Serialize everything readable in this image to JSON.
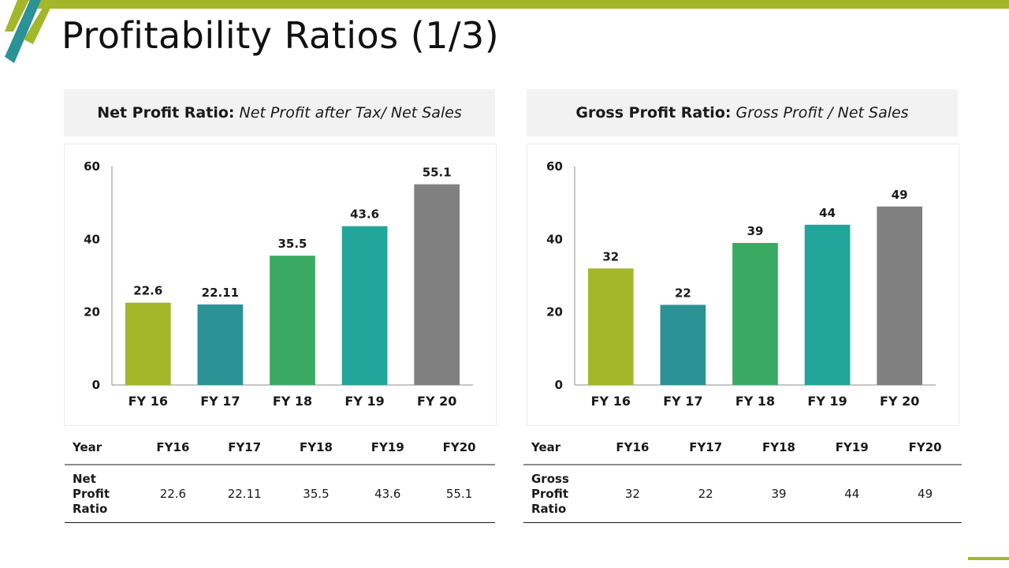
{
  "title": "Profitability Ratios (1/3)",
  "colors": {
    "accent_green": "#a3b72b",
    "teal": "#2b9296",
    "green": "#3aaa62",
    "aqua": "#22a59a",
    "gray": "#808080"
  },
  "panels": [
    {
      "header_bold": "Net Profit Ratio:",
      "header_italic": " Net Profit after Tax/ Net Sales",
      "table": {
        "year_label": "Year",
        "years": [
          "FY16",
          "FY17",
          "FY18",
          "FY19",
          "FY20"
        ],
        "row_label": "Net Profit Ratio",
        "values": [
          "22.6",
          "22.11",
          "35.5",
          "43.6",
          "55.1"
        ]
      }
    },
    {
      "header_bold": "Gross Profit Ratio:",
      "header_italic": " Gross Profit / Net Sales",
      "table": {
        "year_label": "Year",
        "years": [
          "FY16",
          "FY17",
          "FY18",
          "FY19",
          "FY20"
        ],
        "row_label": "Gross Profit Ratio",
        "values": [
          "32",
          "22",
          "39",
          "44",
          "49"
        ]
      }
    }
  ],
  "chart_data": [
    {
      "type": "bar",
      "title": "Net Profit Ratio",
      "categories": [
        "FY 16",
        "FY 17",
        "FY 18",
        "FY 19",
        "FY 20"
      ],
      "values": [
        22.6,
        22.11,
        35.5,
        43.6,
        55.1
      ],
      "data_labels": [
        "22.6",
        "22.11",
        "35.5",
        "43.6",
        "55.1"
      ],
      "bar_colors": [
        "#a3b72b",
        "#2b9296",
        "#3aaa62",
        "#22a59a",
        "#808080"
      ],
      "ylim": [
        0,
        60
      ],
      "yticks": [
        0,
        20,
        40,
        60
      ],
      "xlabel": "",
      "ylabel": "",
      "grid": false,
      "legend": "none"
    },
    {
      "type": "bar",
      "title": "Gross Profit Ratio",
      "categories": [
        "FY 16",
        "FY 17",
        "FY 18",
        "FY 19",
        "FY 20"
      ],
      "values": [
        32,
        22,
        39,
        44,
        49
      ],
      "data_labels": [
        "32",
        "22",
        "39",
        "44",
        "49"
      ],
      "bar_colors": [
        "#a3b72b",
        "#2b9296",
        "#3aaa62",
        "#22a59a",
        "#808080"
      ],
      "ylim": [
        0,
        60
      ],
      "yticks": [
        0,
        20,
        40,
        60
      ],
      "xlabel": "",
      "ylabel": "",
      "grid": false,
      "legend": "none"
    }
  ]
}
